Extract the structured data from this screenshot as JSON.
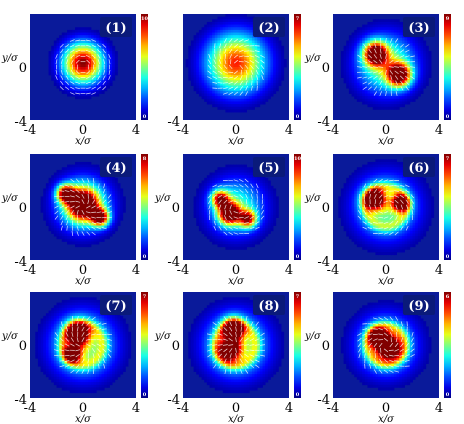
{
  "figure": {
    "colormap": "jet",
    "background_color": "#0a1a9a",
    "arrow_color": "#ffffff",
    "badge_color": "#0a1a7a"
  },
  "chart_data": [
    {
      "type": "heatmap",
      "panel_label": "(1)",
      "xlabel": "x/σ",
      "ylabel": "y/σ",
      "xlim": [
        -4,
        4
      ],
      "ylim": [
        -4,
        4
      ],
      "xticks": [
        "-4",
        "0",
        "4"
      ],
      "yticks": [
        "",
        "0",
        "-4"
      ],
      "cbar_ticks": [
        "10",
        "0"
      ],
      "blobs": [
        {
          "cx": 0.0,
          "cy": 0.3,
          "s": 1.05,
          "a": 1.0
        }
      ],
      "ring": 0
    },
    {
      "type": "heatmap",
      "panel_label": "(2)",
      "xlabel": "x/σ",
      "ylabel": "",
      "xlim": [
        -4,
        4
      ],
      "ylim": [
        -4,
        4
      ],
      "xticks": [
        "-4",
        "0",
        "4"
      ],
      "yticks": [
        "",
        "",
        "-4"
      ],
      "cbar_ticks": [
        "7",
        "0"
      ],
      "blobs": [
        {
          "cx": 0.0,
          "cy": 0.3,
          "s": 1.5,
          "a": 0.85
        }
      ],
      "ring": 0
    },
    {
      "type": "heatmap",
      "panel_label": "(3)",
      "xlabel": "x/σ",
      "ylabel": "y/σ",
      "xlim": [
        -4,
        4
      ],
      "ylim": [
        -4,
        4
      ],
      "xticks": [
        "-4",
        "0",
        "4"
      ],
      "yticks": [
        "",
        "0",
        "-4"
      ],
      "cbar_ticks": [
        "9",
        "0"
      ],
      "blobs": [
        {
          "cx": -0.8,
          "cy": 1.0,
          "s": 0.6,
          "a": 1.0
        },
        {
          "cx": 1.0,
          "cy": -0.6,
          "s": 0.6,
          "a": 1.0
        },
        {
          "cx": 0.0,
          "cy": 0.2,
          "s": 1.5,
          "a": 0.55
        }
      ],
      "ring": 0
    },
    {
      "type": "heatmap",
      "panel_label": "(4)",
      "xlabel": "x/σ",
      "ylabel": "y/σ",
      "xlim": [
        -4,
        4
      ],
      "ylim": [
        -4,
        4
      ],
      "xticks": [
        "-4",
        "0",
        "4"
      ],
      "yticks": [
        "",
        "0",
        "-4"
      ],
      "cbar_ticks": [
        "8",
        "0"
      ],
      "blobs": [
        {
          "cx": 0.0,
          "cy": 0.2,
          "s": 0.8,
          "a": 1.0
        },
        {
          "cx": -1.3,
          "cy": 1.0,
          "s": 0.45,
          "a": 0.95
        },
        {
          "cx": 1.3,
          "cy": -0.8,
          "s": 0.45,
          "a": 0.95
        },
        {
          "cx": 0.0,
          "cy": 0.2,
          "s": 1.4,
          "a": 0.5
        }
      ],
      "ring": 0
    },
    {
      "type": "heatmap",
      "panel_label": "(5)",
      "xlabel": "x/σ",
      "ylabel": "y/σ",
      "xlim": [
        -4,
        4
      ],
      "ylim": [
        -4,
        4
      ],
      "xticks": [
        "-4",
        "0",
        "4"
      ],
      "yticks": [
        "",
        "0",
        "-4"
      ],
      "cbar_ticks": [
        "10",
        "0"
      ],
      "blobs": [
        {
          "cx": -0.5,
          "cy": -0.5,
          "s": 0.55,
          "a": 1.0
        },
        {
          "cx": -1.2,
          "cy": 0.6,
          "s": 0.45,
          "a": 0.8
        },
        {
          "cx": 0.9,
          "cy": -0.9,
          "s": 0.45,
          "a": 0.75
        },
        {
          "cx": 0.0,
          "cy": 0.0,
          "s": 1.45,
          "a": 0.45
        }
      ],
      "ring": 0
    },
    {
      "type": "heatmap",
      "panel_label": "(6)",
      "xlabel": "x/σ",
      "ylabel": "y/σ",
      "xlim": [
        -4,
        4
      ],
      "ylim": [
        -4,
        4
      ],
      "xticks": [
        "-4",
        "0",
        "4"
      ],
      "yticks": [
        "",
        "0",
        "-4"
      ],
      "cbar_ticks": [
        "7",
        "0"
      ],
      "blobs": [
        {
          "cx": -0.9,
          "cy": 0.6,
          "s": 0.55,
          "a": 1.0
        },
        {
          "cx": 1.1,
          "cy": 0.3,
          "s": 0.45,
          "a": 0.9
        },
        {
          "cx": 0.0,
          "cy": 0.0,
          "s": 1.6,
          "a": 0.5
        }
      ],
      "ring": 1.5
    },
    {
      "type": "heatmap",
      "panel_label": "(7)",
      "xlabel": "x/σ",
      "ylabel": "y/σ",
      "xlim": [
        -4,
        4
      ],
      "ylim": [
        -4,
        4
      ],
      "xticks": [
        "-4",
        "0",
        "4"
      ],
      "yticks": [
        "",
        "0",
        "-4"
      ],
      "cbar_ticks": [
        "7",
        "0"
      ],
      "blobs": [
        {
          "cx": -0.4,
          "cy": 0.9,
          "s": 0.6,
          "a": 1.0
        },
        {
          "cx": -0.8,
          "cy": -0.7,
          "s": 0.45,
          "a": 0.85
        },
        {
          "cx": 0.0,
          "cy": 0.0,
          "s": 1.6,
          "a": 0.55
        }
      ],
      "ring": 1.5
    },
    {
      "type": "heatmap",
      "panel_label": "(8)",
      "xlabel": "x/σ",
      "ylabel": "y/σ",
      "xlim": [
        -4,
        4
      ],
      "ylim": [
        -4,
        4
      ],
      "xticks": [
        "-4",
        "0",
        "4"
      ],
      "yticks": [
        "",
        "0",
        "-4"
      ],
      "cbar_ticks": [
        "7",
        "0"
      ],
      "blobs": [
        {
          "cx": -0.2,
          "cy": 1.2,
          "s": 0.55,
          "a": 1.0
        },
        {
          "cx": -0.5,
          "cy": -0.4,
          "s": 0.6,
          "a": 0.8
        },
        {
          "cx": 0.0,
          "cy": 0.0,
          "s": 1.6,
          "a": 0.55
        }
      ],
      "ring": 1.5
    },
    {
      "type": "heatmap",
      "panel_label": "(9)",
      "xlabel": "x/σ",
      "ylabel": "y/σ",
      "xlim": [
        -4,
        4
      ],
      "ylim": [
        -4,
        4
      ],
      "xticks": [
        "-4",
        "0",
        "4"
      ],
      "yticks": [
        "",
        "0",
        "-4"
      ],
      "cbar_ticks": [
        "6",
        "0"
      ],
      "blobs": [
        {
          "cx": 0.2,
          "cy": -0.2,
          "s": 0.65,
          "a": 1.0
        },
        {
          "cx": -0.6,
          "cy": 0.6,
          "s": 0.5,
          "a": 0.85
        },
        {
          "cx": 0.0,
          "cy": 0.0,
          "s": 1.5,
          "a": 0.5
        }
      ],
      "ring": 1.4
    }
  ]
}
